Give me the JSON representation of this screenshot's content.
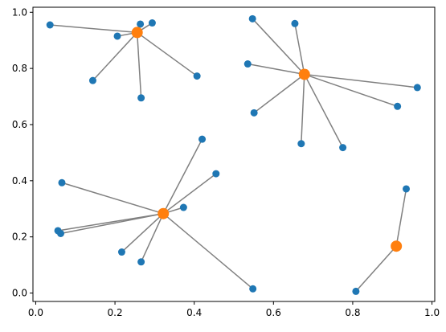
{
  "chart_data": {
    "type": "scatter",
    "title": "",
    "xlabel": "",
    "ylabel": "",
    "xlim": [
      -0.007,
      1.007
    ],
    "ylim": [
      -0.03,
      1.018
    ],
    "grid": false,
    "xticks": [
      0.0,
      0.2,
      0.4,
      0.6,
      0.8,
      1.0
    ],
    "xtick_labels": [
      "0.0",
      "0.2",
      "0.4",
      "0.6",
      "0.8",
      "1.0"
    ],
    "yticks": [
      0.0,
      0.2,
      0.4,
      0.6,
      0.8,
      1.0
    ],
    "ytick_labels": [
      "0.0",
      "0.2",
      "0.4",
      "0.6",
      "0.8",
      "1.0"
    ],
    "colors": {
      "points": "#1f77b4",
      "centers": "#ff7f0e",
      "lines": "#808080"
    },
    "centers": [
      {
        "x": 0.256,
        "y": 0.928
      },
      {
        "x": 0.678,
        "y": 0.779
      },
      {
        "x": 0.322,
        "y": 0.283
      },
      {
        "x": 0.91,
        "y": 0.167
      }
    ],
    "clusters": [
      {
        "center": 0,
        "points": [
          {
            "x": 0.036,
            "y": 0.955
          },
          {
            "x": 0.206,
            "y": 0.915
          },
          {
            "x": 0.264,
            "y": 0.958
          },
          {
            "x": 0.294,
            "y": 0.962
          },
          {
            "x": 0.144,
            "y": 0.757
          },
          {
            "x": 0.266,
            "y": 0.695
          },
          {
            "x": 0.407,
            "y": 0.773
          }
        ]
      },
      {
        "center": 1,
        "points": [
          {
            "x": 0.547,
            "y": 0.977
          },
          {
            "x": 0.654,
            "y": 0.96
          },
          {
            "x": 0.535,
            "y": 0.816
          },
          {
            "x": 0.551,
            "y": 0.642
          },
          {
            "x": 0.963,
            "y": 0.732
          },
          {
            "x": 0.913,
            "y": 0.665
          },
          {
            "x": 0.67,
            "y": 0.532
          },
          {
            "x": 0.775,
            "y": 0.518
          }
        ]
      },
      {
        "center": 2,
        "points": [
          {
            "x": 0.42,
            "y": 0.548
          },
          {
            "x": 0.455,
            "y": 0.425
          },
          {
            "x": 0.066,
            "y": 0.393
          },
          {
            "x": 0.373,
            "y": 0.305
          },
          {
            "x": 0.056,
            "y": 0.222
          },
          {
            "x": 0.063,
            "y": 0.212
          },
          {
            "x": 0.217,
            "y": 0.146
          },
          {
            "x": 0.266,
            "y": 0.111
          },
          {
            "x": 0.548,
            "y": 0.015
          }
        ]
      },
      {
        "center": 3,
        "points": [
          {
            "x": 0.935,
            "y": 0.371
          },
          {
            "x": 0.808,
            "y": 0.006
          }
        ]
      }
    ]
  }
}
